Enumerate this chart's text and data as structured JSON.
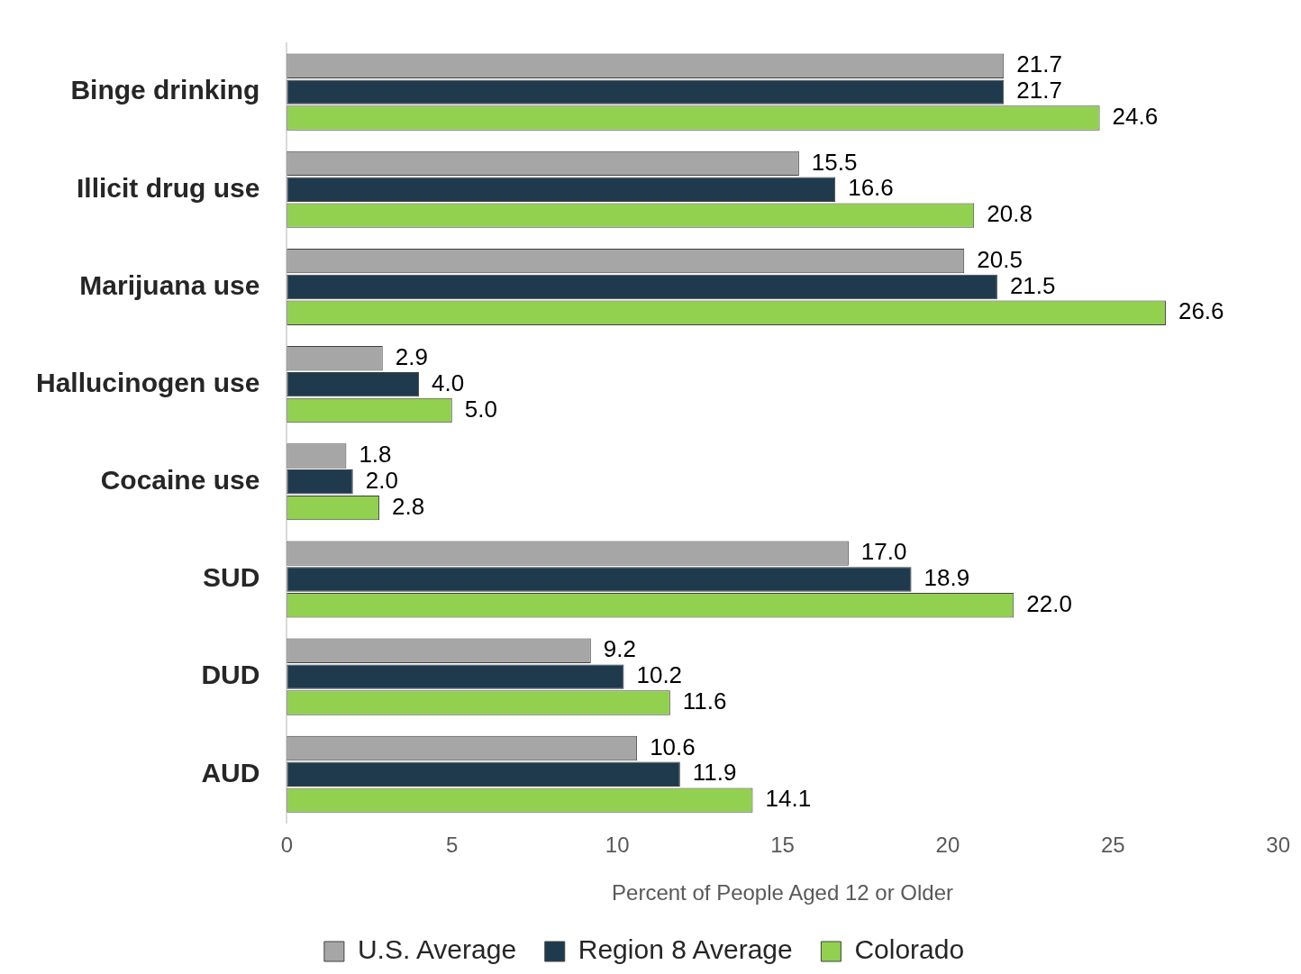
{
  "chart_data": {
    "type": "bar",
    "orientation": "horizontal",
    "xlabel": "Percent of People Aged 12 or Older",
    "categories": [
      "Binge drinking",
      "Illicit drug use",
      "Marijuana use",
      "Hallucinogen use",
      "Cocaine use",
      "SUD",
      "DUD",
      "AUD"
    ],
    "series": [
      {
        "name": "U.S. Average",
        "color": "#a6a6a6",
        "values": [
          21.7,
          15.5,
          20.5,
          2.9,
          1.8,
          17.0,
          9.2,
          10.6
        ],
        "value_labels": [
          "21.7",
          "15.5",
          "20.5",
          "2.9",
          "1.8",
          "17.0",
          "9.2",
          "10.6"
        ]
      },
      {
        "name": "Region 8 Average",
        "color": "#1f3a4d",
        "values": [
          21.7,
          16.6,
          21.5,
          4.0,
          2.0,
          18.9,
          10.2,
          11.9
        ],
        "value_labels": [
          "21.7",
          "16.6",
          "21.5",
          "4.0",
          "2.0",
          "18.9",
          "10.2",
          "11.9"
        ]
      },
      {
        "name": "Colorado",
        "color": "#92d050",
        "values": [
          24.6,
          20.8,
          26.6,
          5.0,
          2.8,
          22.0,
          11.6,
          14.1
        ],
        "value_labels": [
          "24.6",
          "20.8",
          "26.6",
          "5.0",
          "2.8",
          "22.0",
          "11.6",
          "14.1"
        ]
      }
    ],
    "xlim": [
      0,
      30
    ],
    "xticks": [
      0,
      5,
      10,
      15,
      20,
      25,
      30
    ],
    "grid": false,
    "legend": "bottom"
  }
}
